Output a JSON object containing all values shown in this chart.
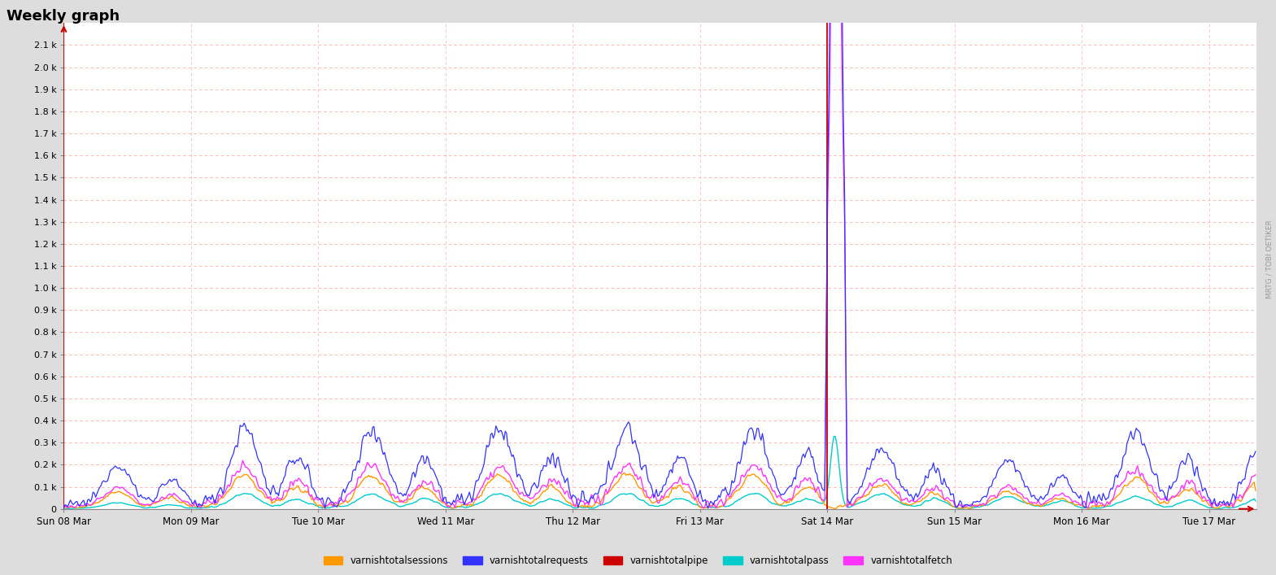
{
  "title": "Weekly graph",
  "background_color": "#dddddd",
  "plot_bg_color": "#ffffff",
  "right_label": "MRTG / TOBI OETIKER",
  "ylim": [
    0,
    2.2
  ],
  "y_label_values": [
    0.0,
    0.1,
    0.2,
    0.3,
    0.4,
    0.5,
    0.6,
    0.7,
    0.8,
    0.9,
    1.0,
    1.1,
    1.2,
    1.3,
    1.4,
    1.5,
    1.6,
    1.7,
    1.8,
    1.9,
    2.0,
    2.1
  ],
  "y_labels": [
    "0",
    "0.1 k",
    "0.2 k",
    "0.3 k",
    "0.4 k",
    "0.5 k",
    "0.6 k",
    "0.7 k",
    "0.8 k",
    "0.9 k",
    "1.0 k",
    "1.1 k",
    "1.2 k",
    "1.3 k",
    "1.4 k",
    "1.5 k",
    "1.6 k",
    "1.7 k",
    "1.8 k",
    "1.9 k",
    "2.0 k",
    "2.1 k"
  ],
  "x_tick_positions": [
    0,
    96,
    192,
    288,
    384,
    480,
    576,
    672,
    768,
    864
  ],
  "x_tick_labels": [
    "Sun 08 Mar",
    "Mon 09 Mar",
    "Tue 10 Mar",
    "Wed 11 Mar",
    "Thu 12 Mar",
    "Fri 13 Mar",
    "Sat 14 Mar",
    "Sun 15 Mar",
    "Mon 16 Mar",
    "Tue 17 Mar"
  ],
  "N": 900,
  "red_vline_positions": [
    0,
    576
  ],
  "series_colors": {
    "requests": "#3333ff",
    "fetch": "#ff33ff",
    "sessions": "#ff9900",
    "pass": "#00cccc",
    "pipe": "#cc0000"
  },
  "legend_entries": [
    {
      "label": "varnishtotalsessions",
      "color": "#ff9900"
    },
    {
      "label": "varnishtotalrequests",
      "color": "#3333ff"
    },
    {
      "label": "varnishtotalpipe",
      "color": "#cc0000"
    },
    {
      "label": "varnishtotalpass",
      "color": "#00cccc"
    },
    {
      "label": "varnishtotalfetch",
      "color": "#ff33ff"
    }
  ]
}
